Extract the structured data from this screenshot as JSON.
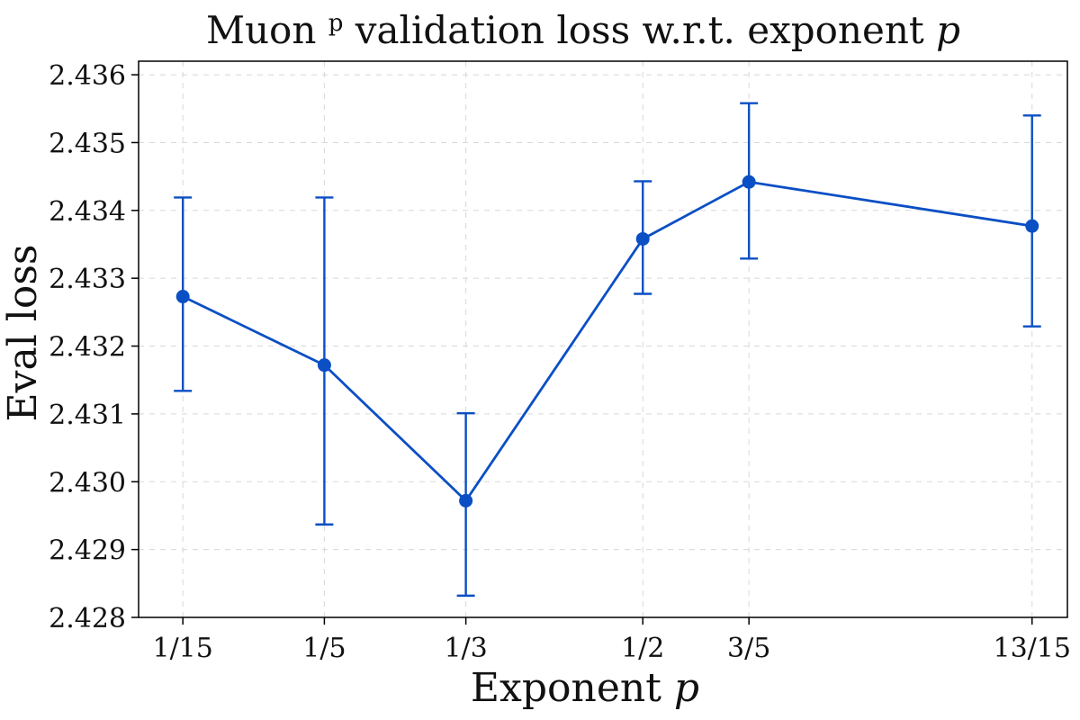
{
  "chart_data": {
    "type": "line",
    "title": "Muon",
    "title_superscript": "p",
    "title_suffix": " validation loss w.r.t. exponent ",
    "title_variable": "p",
    "xlabel": "Exponent ",
    "xlabel_variable": "p",
    "ylabel": "Eval loss",
    "categories": [
      "1/15",
      "1/5",
      "1/3",
      "1/2",
      "3/5",
      "13/15"
    ],
    "x": [
      0.0667,
      0.2,
      0.3333,
      0.5,
      0.6,
      0.8667
    ],
    "y_ticks": [
      "2.428",
      "2.429",
      "2.430",
      "2.431",
      "2.432",
      "2.433",
      "2.434",
      "2.435",
      "2.436"
    ],
    "ylim": [
      2.428,
      2.4362
    ],
    "xlim": [
      0.025,
      0.9
    ],
    "grid": true,
    "series": [
      {
        "values": [
          2.43273,
          2.43172,
          2.42972,
          2.43358,
          2.43442,
          2.43377
        ],
        "error_low": [
          2.43134,
          2.42937,
          2.42832,
          2.43277,
          2.43329,
          2.43229
        ],
        "error_high": [
          2.43419,
          2.43419,
          2.43101,
          2.43443,
          2.43558,
          2.4354
        ],
        "color": "#0b4fc4"
      }
    ]
  }
}
